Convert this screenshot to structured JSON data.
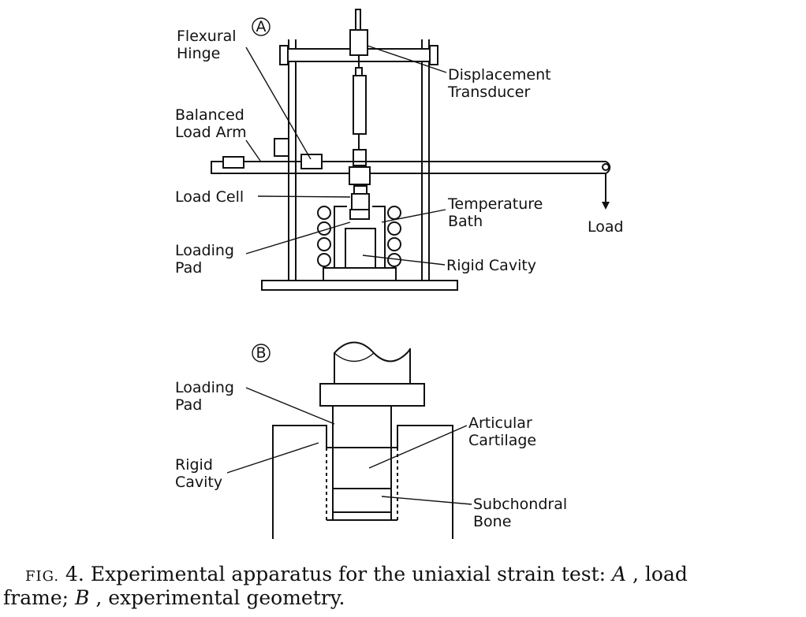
{
  "panel_a": {
    "marker": "A",
    "labels": {
      "flexural_hinge_1": "Flexural",
      "flexural_hinge_2": "Hinge",
      "displacement_transducer_1": "Displacement",
      "displacement_transducer_2": "Transducer",
      "balanced_load_arm_1": "Balanced",
      "balanced_load_arm_2": "Load Arm",
      "load_cell": "Load Cell",
      "temperature_bath_1": "Temperature",
      "temperature_bath_2": "Bath",
      "load": "Load",
      "loading_pad_1": "Loading",
      "loading_pad_2": "Pad",
      "rigid_cavity": "Rigid Cavity"
    }
  },
  "panel_b": {
    "marker": "B",
    "labels": {
      "loading_pad_1": "Loading",
      "loading_pad_2": "Pad",
      "articular_cartilage_1": "Articular",
      "articular_cartilage_2": "Cartilage",
      "rigid_cavity_1": "Rigid",
      "rigid_cavity_2": "Cavity",
      "subchondral_bone_1": "Subchondral",
      "subchondral_bone_2": "Bone"
    }
  },
  "caption": {
    "fig_label": "FIG.",
    "line1": "4. Experimental apparatus for the uniaxial strain test: ",
    "a_italic": "A",
    "line1_end": ", load",
    "line2_start": "frame; ",
    "b_italic": "B",
    "line2_end": ", experimental geometry."
  }
}
